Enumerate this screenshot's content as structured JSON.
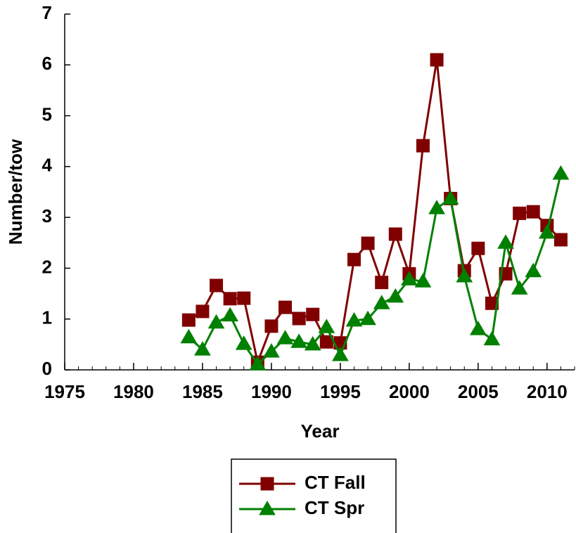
{
  "chart_data": {
    "type": "line",
    "xlabel": "Year",
    "ylabel": "Number/tow",
    "x": [
      1984,
      1985,
      1986,
      1987,
      1988,
      1989,
      1990,
      1991,
      1992,
      1993,
      1994,
      1995,
      1996,
      1997,
      1998,
      1999,
      2000,
      2001,
      2002,
      2003,
      2004,
      2005,
      2006,
      2007,
      2008,
      2009,
      2010,
      2011
    ],
    "series": [
      {
        "name": "CT Fall",
        "color": "#800000",
        "marker": "square",
        "values": [
          0.98,
          1.15,
          1.66,
          1.4,
          1.41,
          0.15,
          0.86,
          1.23,
          1.01,
          1.09,
          0.55,
          0.53,
          2.17,
          2.49,
          1.72,
          2.67,
          1.89,
          4.41,
          6.1,
          3.37,
          1.95,
          2.39,
          1.31,
          1.89,
          3.08,
          3.11,
          2.84,
          2.56
        ]
      },
      {
        "name": "CT Spr",
        "color": "#008000",
        "marker": "triangle",
        "values": [
          0.64,
          0.4,
          0.93,
          1.07,
          0.51,
          0.11,
          0.36,
          0.62,
          0.55,
          0.5,
          0.84,
          0.29,
          0.97,
          1.0,
          1.31,
          1.44,
          1.78,
          1.74,
          3.18,
          3.37,
          1.84,
          0.8,
          0.6,
          2.5,
          1.6,
          1.94,
          2.7,
          3.86
        ]
      }
    ],
    "xlim": [
      1975,
      2012
    ],
    "xticks": [
      1975,
      1980,
      1985,
      1990,
      1995,
      2000,
      2005,
      2010
    ],
    "ylim": [
      0,
      7
    ],
    "yticks": [
      0,
      1,
      2,
      3,
      4,
      5,
      6,
      7
    ],
    "legend": "bottom"
  }
}
